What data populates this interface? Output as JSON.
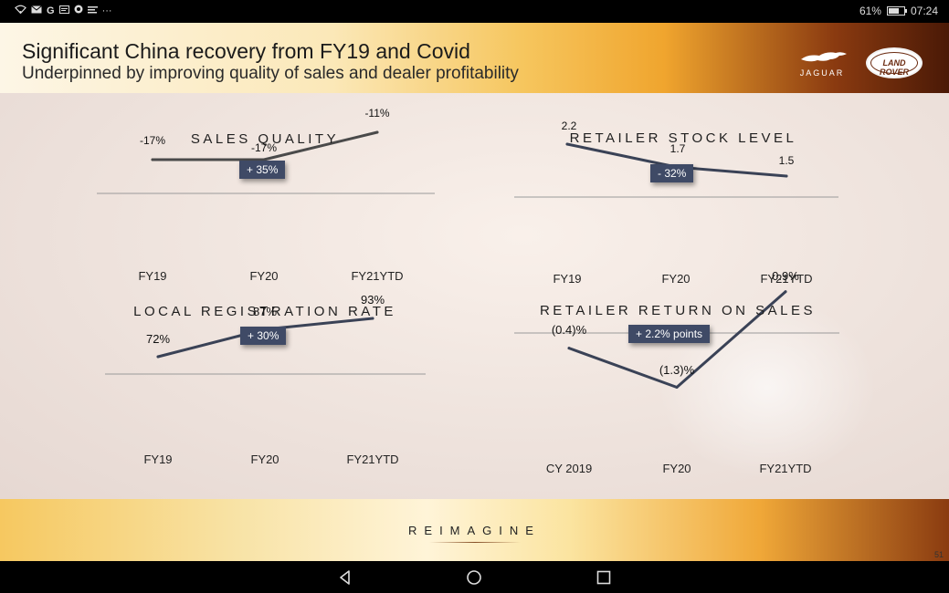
{
  "status_bar": {
    "left_icons": [
      "wifi-icon",
      "mail-icon",
      "google-icon",
      "gallery-icon",
      "app-icon",
      "notification-icon",
      "more-icon"
    ],
    "battery_percent": "61%",
    "battery_level": 0.61,
    "time": "07:24"
  },
  "slide": {
    "title": "Significant China recovery from FY19 and Covid",
    "subtitle": "Underpinned by improving quality of sales and dealer profitability",
    "logos": {
      "jaguar_text": "JAGUAR",
      "landrover_line1": "LAND",
      "landrover_line2": "ROVER"
    },
    "footer_text": "REIMAGINE",
    "page_number": "51"
  },
  "colors": {
    "line": "#3a4256",
    "badge": "#3f4a66",
    "axis": "#9a9a9a"
  },
  "chart_data": [
    {
      "type": "line",
      "title": "SALES QUALITY",
      "badge": "+ 35%",
      "categories": [
        "FY19",
        "FY20",
        "FY21YTD"
      ],
      "values": [
        -17,
        -17,
        -11
      ],
      "data_labels": [
        "-17%",
        "-17%",
        "-11%"
      ],
      "ylim": [
        -20,
        -10
      ]
    },
    {
      "type": "line",
      "title": "RETAILER STOCK LEVEL",
      "badge": "- 32%",
      "categories": [
        "FY19",
        "FY20",
        "FY21YTD"
      ],
      "values": [
        2.2,
        1.7,
        1.5
      ],
      "data_labels": [
        "2.2",
        "1.7",
        "1.5"
      ],
      "ylim": [
        1.0,
        2.5
      ]
    },
    {
      "type": "line",
      "title": "LOCAL REGISTRATION RATE",
      "badge": "+ 30%",
      "categories": [
        "FY19",
        "FY20",
        "FY21YTD"
      ],
      "values": [
        72,
        87,
        93
      ],
      "data_labels": [
        "72%",
        "87%",
        "93%"
      ],
      "ylim": [
        60,
        100
      ]
    },
    {
      "type": "line",
      "title": "RETAILER RETURN ON SALES",
      "badge": "+ 2.2% points",
      "categories": [
        "CY 2019",
        "FY20",
        "FY21YTD"
      ],
      "values": [
        -0.4,
        -1.3,
        0.9
      ],
      "data_labels": [
        "(0.4)%",
        "(1.3)%",
        "0.9%"
      ],
      "ylim": [
        -1.5,
        1.0
      ]
    }
  ]
}
